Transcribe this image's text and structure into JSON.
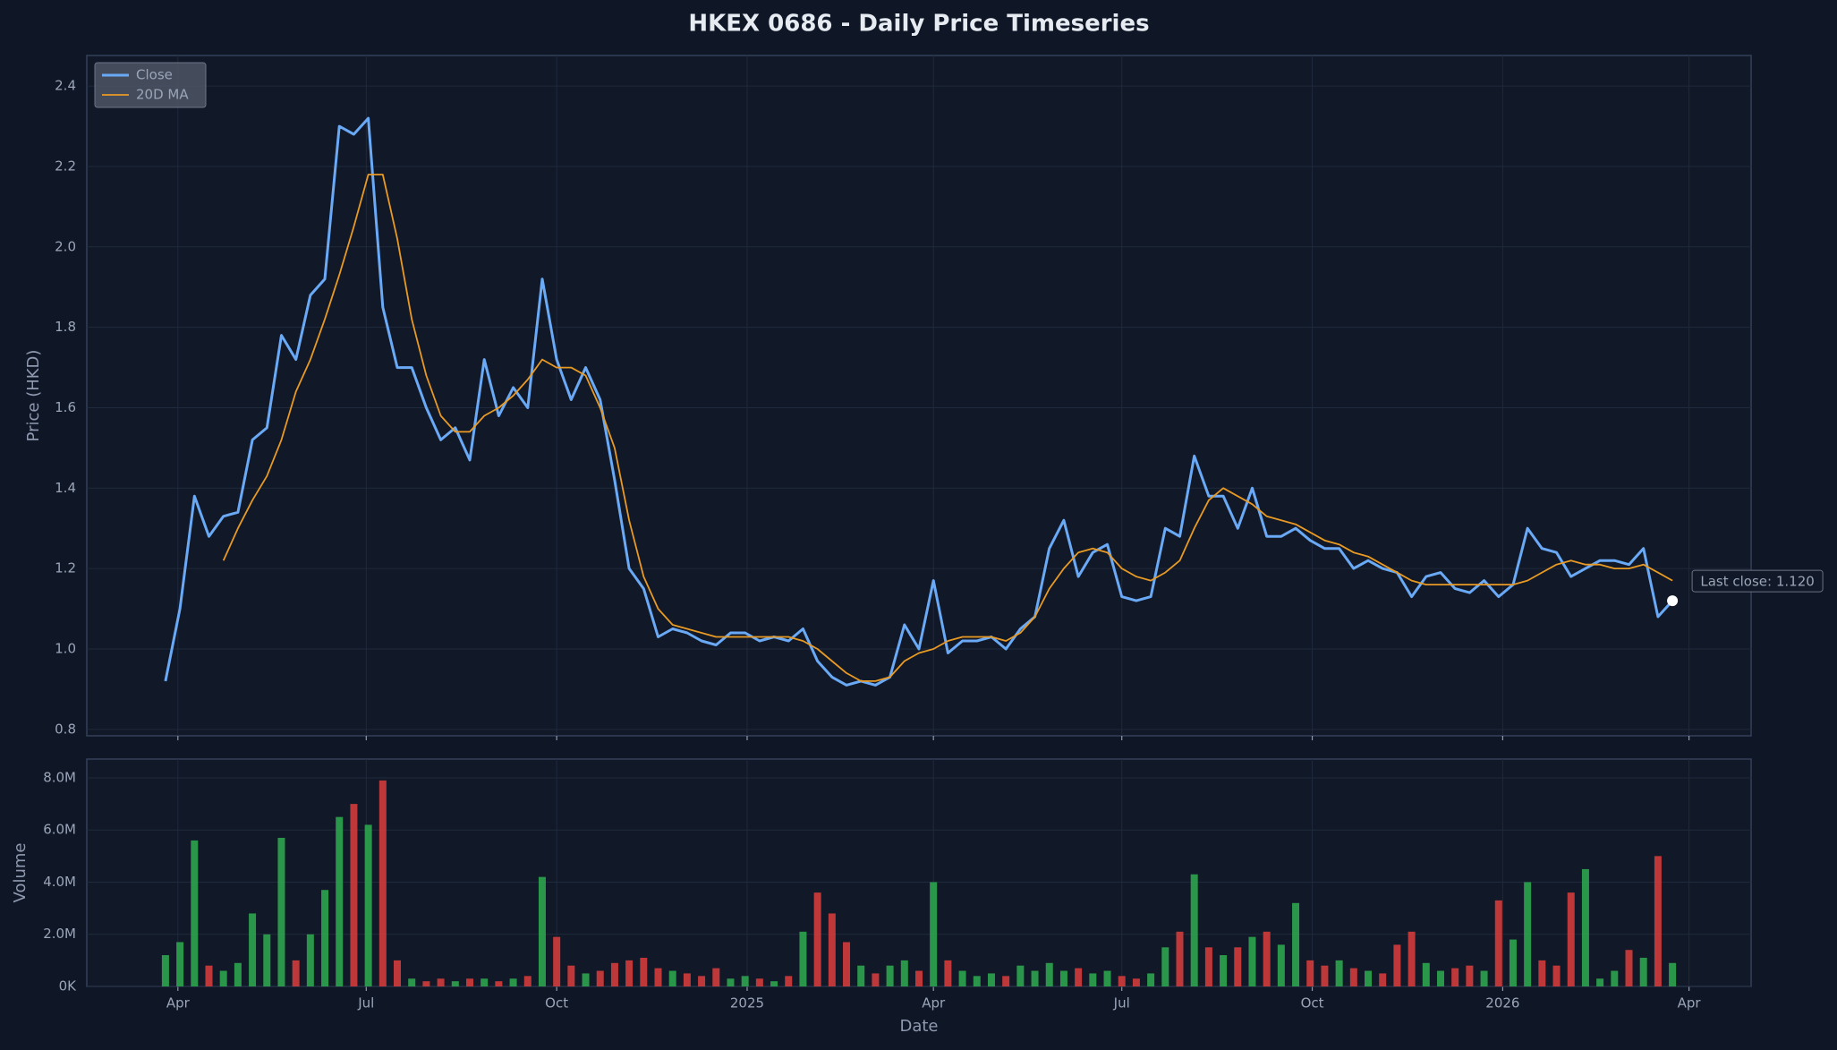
{
  "chart_data": [
    {
      "type": "line",
      "title": "HKEX 0686 - Daily Price Timeseries",
      "ylabel": "Price (HKD)",
      "annotation": "Last close: 1.120",
      "legend": "upper left",
      "grid": true,
      "xlim": [
        "2024-02-17",
        "2026-05-01"
      ],
      "ylim": [
        0.784,
        2.476
      ],
      "yticks": [
        0.8,
        {
          "value": 1,
          "label": "1.0"
        },
        1.2,
        1.4,
        1.6,
        1.8,
        {
          "value": 2,
          "label": "2.0"
        },
        2.2,
        2.4
      ],
      "x": [
        "2024-03-26",
        "2024-04-02",
        "2024-04-09",
        "2024-04-16",
        "2024-04-23",
        "2024-04-30",
        "2024-05-07",
        "2024-05-14",
        "2024-05-21",
        "2024-05-28",
        "2024-06-04",
        "2024-06-11",
        "2024-06-18",
        "2024-06-25",
        "2024-07-02",
        "2024-07-09",
        "2024-07-16",
        "2024-07-23",
        "2024-07-30",
        "2024-08-06",
        "2024-08-13",
        "2024-08-20",
        "2024-08-27",
        "2024-09-03",
        "2024-09-10",
        "2024-09-17",
        "2024-09-24",
        "2024-10-01",
        "2024-10-08",
        "2024-10-15",
        "2024-10-22",
        "2024-10-29",
        "2024-11-05",
        "2024-11-12",
        "2024-11-19",
        "2024-11-26",
        "2024-12-03",
        "2024-12-10",
        "2024-12-17",
        "2024-12-24",
        "2024-12-31",
        "2025-01-07",
        "2025-01-14",
        "2025-01-21",
        "2025-01-28",
        "2025-02-04",
        "2025-02-11",
        "2025-02-18",
        "2025-02-25",
        "2025-03-04",
        "2025-03-11",
        "2025-03-18",
        "2025-03-25",
        "2025-04-01",
        "2025-04-08",
        "2025-04-15",
        "2025-04-22",
        "2025-04-29",
        "2025-05-06",
        "2025-05-13",
        "2025-05-20",
        "2025-05-27",
        "2025-06-03",
        "2025-06-10",
        "2025-06-17",
        "2025-06-24",
        "2025-07-01",
        "2025-07-08",
        "2025-07-15",
        "2025-07-22",
        "2025-07-29",
        "2025-08-05",
        "2025-08-12",
        "2025-08-19",
        "2025-08-26",
        "2025-09-02",
        "2025-09-09",
        "2025-09-16",
        "2025-09-23",
        "2025-09-30",
        "2025-10-07",
        "2025-10-14",
        "2025-10-21",
        "2025-10-28",
        "2025-11-04",
        "2025-11-11",
        "2025-11-18",
        "2025-11-25",
        "2025-12-02",
        "2025-12-09",
        "2025-12-16",
        "2025-12-23",
        "2025-12-30",
        "2026-01-06",
        "2026-01-13",
        "2026-01-20",
        "2026-01-27",
        "2026-02-03",
        "2026-02-10",
        "2026-02-17",
        "2026-02-24",
        "2026-03-03",
        "2026-03-10",
        "2026-03-17",
        "2026-03-24"
      ],
      "series": [
        {
          "name": "Close",
          "color": "#6aa9f5",
          "values": [
            0.92,
            1.1,
            1.38,
            1.28,
            1.33,
            1.34,
            1.52,
            1.55,
            1.78,
            1.72,
            1.88,
            1.92,
            2.3,
            2.28,
            2.32,
            1.85,
            1.7,
            1.7,
            1.6,
            1.52,
            1.55,
            1.47,
            1.72,
            1.58,
            1.65,
            1.6,
            1.92,
            1.72,
            1.62,
            1.7,
            1.62,
            1.42,
            1.2,
            1.15,
            1.03,
            1.05,
            1.04,
            1.02,
            1.01,
            1.04,
            1.04,
            1.02,
            1.03,
            1.02,
            1.05,
            0.97,
            0.93,
            0.91,
            0.92,
            0.91,
            0.93,
            1.06,
            1.0,
            1.17,
            0.99,
            1.02,
            1.02,
            1.03,
            1.0,
            1.05,
            1.08,
            1.25,
            1.32,
            1.18,
            1.24,
            1.26,
            1.13,
            1.12,
            1.13,
            1.3,
            1.28,
            1.48,
            1.38,
            1.38,
            1.3,
            1.4,
            1.28,
            1.28,
            1.3,
            1.27,
            1.25,
            1.25,
            1.2,
            1.22,
            1.2,
            1.19,
            1.13,
            1.18,
            1.19,
            1.15,
            1.14,
            1.17,
            1.13,
            1.16,
            1.3,
            1.25,
            1.24,
            1.18,
            1.2,
            1.22,
            1.22,
            1.21,
            1.25,
            1.08,
            1.12
          ]
        },
        {
          "name": "20D MA",
          "color": "#e89a24",
          "values": [
            null,
            null,
            null,
            null,
            1.22,
            1.3,
            1.37,
            1.43,
            1.52,
            1.64,
            1.72,
            1.82,
            1.93,
            2.05,
            2.18,
            2.18,
            2.02,
            1.82,
            1.68,
            1.58,
            1.54,
            1.54,
            1.58,
            1.6,
            1.63,
            1.67,
            1.72,
            1.7,
            1.7,
            1.68,
            1.6,
            1.5,
            1.32,
            1.18,
            1.1,
            1.06,
            1.05,
            1.04,
            1.03,
            1.03,
            1.03,
            1.03,
            1.03,
            1.03,
            1.02,
            1.0,
            0.97,
            0.94,
            0.92,
            0.92,
            0.93,
            0.97,
            0.99,
            1.0,
            1.02,
            1.03,
            1.03,
            1.03,
            1.02,
            1.04,
            1.08,
            1.15,
            1.2,
            1.24,
            1.25,
            1.24,
            1.2,
            1.18,
            1.17,
            1.19,
            1.22,
            1.3,
            1.37,
            1.4,
            1.38,
            1.36,
            1.33,
            1.32,
            1.31,
            1.29,
            1.27,
            1.26,
            1.24,
            1.23,
            1.21,
            1.19,
            1.17,
            1.16,
            1.16,
            1.16,
            1.16,
            1.16,
            1.16,
            1.16,
            1.17,
            1.19,
            1.21,
            1.22,
            1.21,
            1.21,
            1.2,
            1.2,
            1.21,
            1.19,
            1.17
          ]
        }
      ]
    },
    {
      "type": "bar",
      "xlabel": "Date",
      "ylabel": "Volume",
      "grid": true,
      "up_color": "#2ea44f",
      "down_color": "#d23c3c",
      "xlim": [
        "2024-02-17",
        "2026-05-01"
      ],
      "ylim": [
        0,
        8720000
      ],
      "xticks": [
        {
          "value": "2024-04-01",
          "label": "Apr"
        },
        {
          "value": "2024-07-01",
          "label": "Jul"
        },
        {
          "value": "2024-10-01",
          "label": "Oct"
        },
        {
          "value": "2025-01-01",
          "label": "2025"
        },
        {
          "value": "2025-04-01",
          "label": "Apr"
        },
        {
          "value": "2025-07-01",
          "label": "Jul"
        },
        {
          "value": "2025-10-01",
          "label": "Oct"
        },
        {
          "value": "2026-01-01",
          "label": "2026"
        },
        {
          "value": "2026-04-01",
          "label": "Apr"
        }
      ],
      "yticks": [
        {
          "value": 0,
          "label": "0K"
        },
        {
          "value": 2000000,
          "label": "2.0M"
        },
        {
          "value": 4000000,
          "label": "4.0M"
        },
        {
          "value": 6000000,
          "label": "6.0M"
        },
        {
          "value": 8000000,
          "label": "8.0M"
        }
      ],
      "x": [
        "2024-03-26",
        "2024-04-02",
        "2024-04-09",
        "2024-04-16",
        "2024-04-23",
        "2024-04-30",
        "2024-05-07",
        "2024-05-14",
        "2024-05-21",
        "2024-05-28",
        "2024-06-04",
        "2024-06-11",
        "2024-06-18",
        "2024-06-25",
        "2024-07-02",
        "2024-07-09",
        "2024-07-16",
        "2024-07-23",
        "2024-07-30",
        "2024-08-06",
        "2024-08-13",
        "2024-08-20",
        "2024-08-27",
        "2024-09-03",
        "2024-09-10",
        "2024-09-17",
        "2024-09-24",
        "2024-10-01",
        "2024-10-08",
        "2024-10-15",
        "2024-10-22",
        "2024-10-29",
        "2024-11-05",
        "2024-11-12",
        "2024-11-19",
        "2024-11-26",
        "2024-12-03",
        "2024-12-10",
        "2024-12-17",
        "2024-12-24",
        "2024-12-31",
        "2025-01-07",
        "2025-01-14",
        "2025-01-21",
        "2025-01-28",
        "2025-02-04",
        "2025-02-11",
        "2025-02-18",
        "2025-02-25",
        "2025-03-04",
        "2025-03-11",
        "2025-03-18",
        "2025-03-25",
        "2025-04-01",
        "2025-04-08",
        "2025-04-15",
        "2025-04-22",
        "2025-04-29",
        "2025-05-06",
        "2025-05-13",
        "2025-05-20",
        "2025-05-27",
        "2025-06-03",
        "2025-06-10",
        "2025-06-17",
        "2025-06-24",
        "2025-07-01",
        "2025-07-08",
        "2025-07-15",
        "2025-07-22",
        "2025-07-29",
        "2025-08-05",
        "2025-08-12",
        "2025-08-19",
        "2025-08-26",
        "2025-09-02",
        "2025-09-09",
        "2025-09-16",
        "2025-09-23",
        "2025-09-30",
        "2025-10-07",
        "2025-10-14",
        "2025-10-21",
        "2025-10-28",
        "2025-11-04",
        "2025-11-11",
        "2025-11-18",
        "2025-11-25",
        "2025-12-02",
        "2025-12-09",
        "2025-12-16",
        "2025-12-23",
        "2025-12-30",
        "2026-01-06",
        "2026-01-13",
        "2026-01-20",
        "2026-01-27",
        "2026-02-03",
        "2026-02-10",
        "2026-02-17",
        "2026-02-24",
        "2026-03-03",
        "2026-03-10",
        "2026-03-17",
        "2026-03-24"
      ],
      "values": [
        1200000,
        1700000,
        5600000,
        800000,
        600000,
        900000,
        2800000,
        2000000,
        5700000,
        1000000,
        2000000,
        3700000,
        6500000,
        7000000,
        6200000,
        7900000,
        1000000,
        300000,
        200000,
        300000,
        200000,
        300000,
        300000,
        200000,
        300000,
        400000,
        4200000,
        1900000,
        800000,
        500000,
        600000,
        900000,
        1000000,
        1100000,
        700000,
        600000,
        500000,
        400000,
        700000,
        300000,
        400000,
        300000,
        200000,
        400000,
        2100000,
        3600000,
        2800000,
        1700000,
        800000,
        500000,
        800000,
        1000000,
        600000,
        4000000,
        1000000,
        600000,
        400000,
        500000,
        400000,
        800000,
        600000,
        900000,
        600000,
        700000,
        500000,
        600000,
        400000,
        300000,
        500000,
        1500000,
        2100000,
        4300000,
        1500000,
        1200000,
        1500000,
        1900000,
        2100000,
        1600000,
        3200000,
        1000000,
        800000,
        1000000,
        700000,
        600000,
        500000,
        1600000,
        2100000,
        900000,
        600000,
        700000,
        800000,
        600000,
        3300000,
        1800000,
        4000000,
        1000000,
        800000,
        3600000,
        4500000,
        300000,
        600000,
        1400000,
        1100000,
        5000000,
        900000
      ]
    }
  ]
}
